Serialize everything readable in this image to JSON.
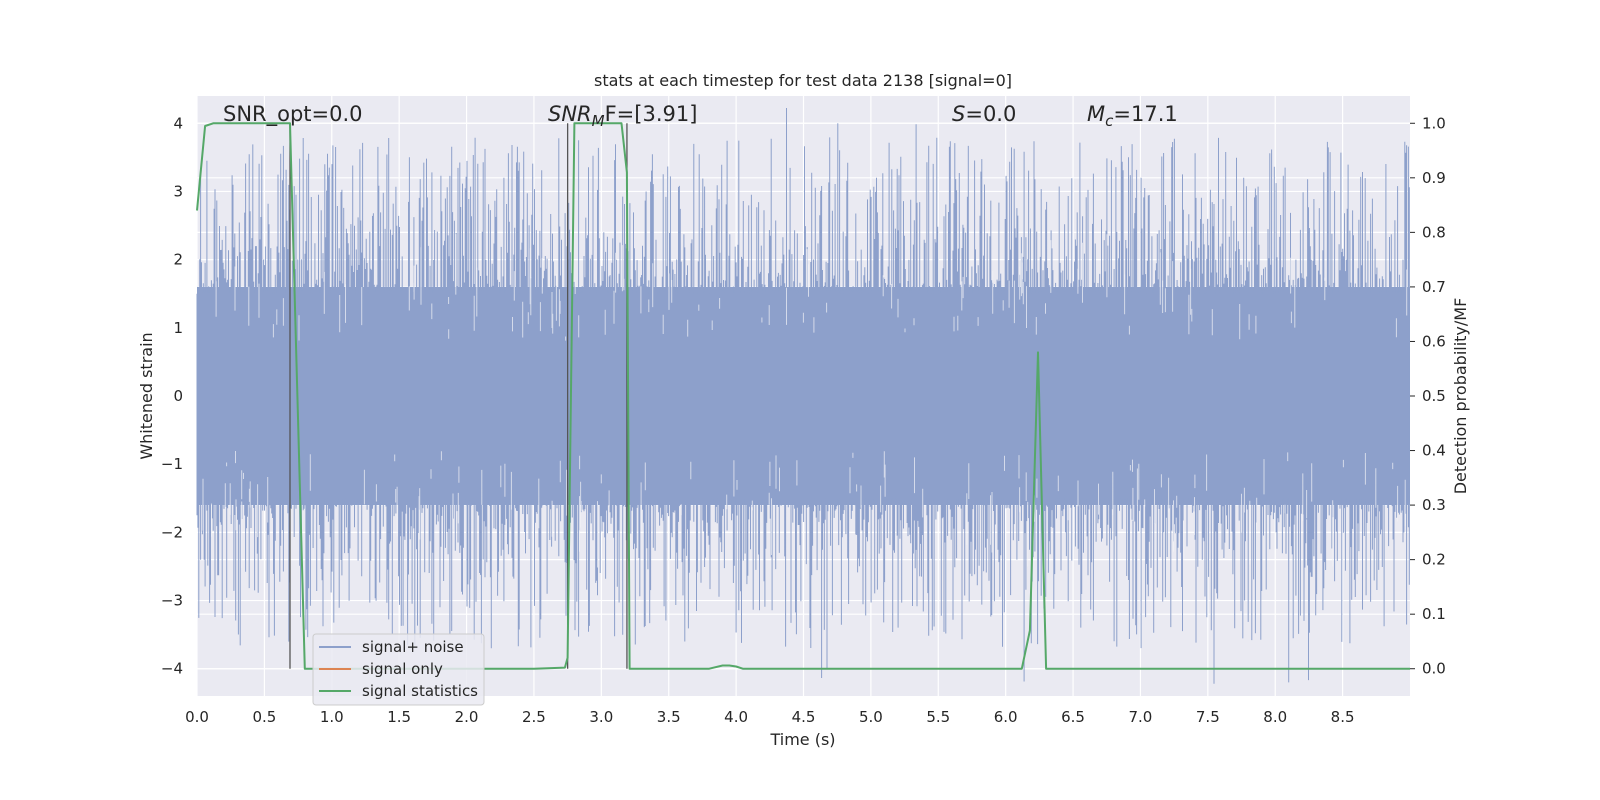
{
  "chart_data": {
    "type": "line",
    "title": "stats at each timestep for test data 2138 [signal=0]",
    "xlabel": "Time (s)",
    "ylabel_left": "Whitened strain",
    "ylabel_right": "Detection probability/MF",
    "xlim": [
      0.0,
      9.0
    ],
    "ylim_left": [
      -4.4,
      4.4
    ],
    "ylim_right": [
      -0.05,
      1.05
    ],
    "x_ticks": [
      "0.0",
      "0.5",
      "1.0",
      "1.5",
      "2.0",
      "2.5",
      "3.0",
      "3.5",
      "4.0",
      "4.5",
      "5.0",
      "5.5",
      "6.0",
      "6.5",
      "7.0",
      "7.5",
      "8.0",
      "8.5"
    ],
    "y_left_ticks": [
      "4",
      "3",
      "2",
      "1",
      "0",
      "−1",
      "−2",
      "−3",
      "−4"
    ],
    "y_right_ticks": [
      "1.0",
      "0.9",
      "0.8",
      "0.7",
      "0.6",
      "0.5",
      "0.4",
      "0.3",
      "0.2",
      "0.1",
      "0.0"
    ],
    "grid": true,
    "legend_position": "lower-left",
    "annotations": {
      "snr_opt": "SNR_opt=0.0",
      "snr_mf_prefix": "SNR",
      "snr_mf_sub": "M",
      "snr_mf_suffix": "F=[3.91]",
      "s_prefix": "S",
      "s_suffix": "=0.0",
      "mc_prefix": "M",
      "mc_sub": "c",
      "mc_suffix": "=17.1"
    },
    "vertical_markers": [
      0.69,
      2.75,
      3.19
    ],
    "series": [
      {
        "name": "signal+ noise",
        "color": "#8da0cb",
        "style": "noise band; envelope approx ±1.6 with spikes up to ±3.8"
      },
      {
        "name": "signal only",
        "color": "#dd8452",
        "values": []
      },
      {
        "name": "signal statistics",
        "color": "#55a868",
        "axis": "right",
        "points": [
          [
            0.0,
            0.84
          ],
          [
            0.06,
            0.995
          ],
          [
            0.12,
            1.0
          ],
          [
            0.2,
            1.0
          ],
          [
            0.65,
            1.0
          ],
          [
            0.69,
            1.0
          ],
          [
            0.8,
            0.0
          ],
          [
            1.0,
            0.0
          ],
          [
            2.5,
            0.0
          ],
          [
            2.73,
            0.002
          ],
          [
            2.75,
            0.02
          ],
          [
            2.8,
            1.0
          ],
          [
            3.15,
            1.0
          ],
          [
            3.19,
            0.91
          ],
          [
            3.21,
            0.0
          ],
          [
            3.26,
            0.0
          ],
          [
            3.8,
            0.0
          ],
          [
            3.9,
            0.006
          ],
          [
            3.95,
            0.006
          ],
          [
            4.0,
            0.004
          ],
          [
            4.05,
            0.0
          ],
          [
            6.12,
            0.0
          ],
          [
            6.18,
            0.07
          ],
          [
            6.24,
            0.58
          ],
          [
            6.3,
            0.0
          ],
          [
            9.0,
            0.0
          ]
        ]
      }
    ]
  }
}
